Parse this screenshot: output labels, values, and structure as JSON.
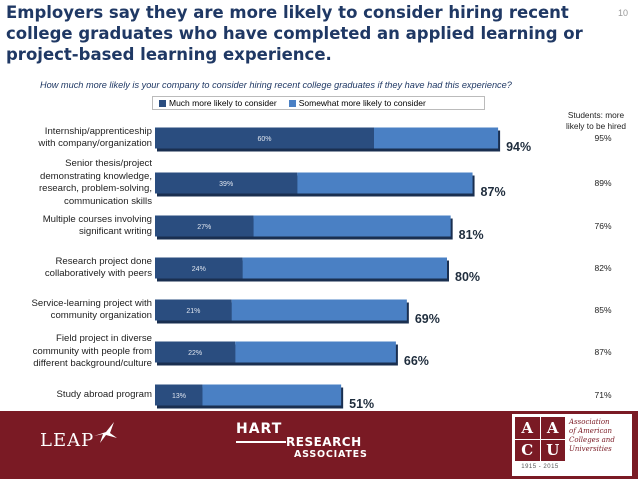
{
  "title": "Employers say they are more likely to consider hiring recent college graduates who have completed an applied learning or project-based learning experience.",
  "page_number": "10",
  "chart_data": {
    "type": "bar",
    "orientation": "horizontal",
    "stacked": true,
    "title": "How much more likely is your company to consider hiring recent college graduates if they have had this experience?",
    "categories": [
      "Internship/apprenticeship with company/organization",
      "Senior thesis/project demonstrating knowledge, research, problem-solving, communication skills",
      "Multiple courses involving significant writing",
      "Research project done collaboratively with peers",
      "Service-learning project with community organization",
      "Field project in diverse community with people from different background/culture",
      "Study abroad program"
    ],
    "series": [
      {
        "name": "Much more likely to consider",
        "values": [
          60,
          39,
          27,
          24,
          21,
          22,
          13
        ],
        "labels": [
          "60%",
          "39%",
          "27%",
          "24%",
          "21%",
          "22%",
          "13%"
        ],
        "color": "#2a4d7f"
      },
      {
        "name": "Somewhat more likely to consider",
        "values": [
          34,
          48,
          54,
          56,
          48,
          44,
          38
        ],
        "color": "#4a80c4"
      }
    ],
    "totals": [
      94,
      87,
      81,
      80,
      69,
      66,
      51
    ],
    "total_labels": [
      "94%",
      "87%",
      "81%",
      "80%",
      "69%",
      "66%",
      "51%"
    ],
    "students_header": [
      "Students: more",
      "likely to be hired"
    ],
    "students": [
      "95%",
      "89%",
      "76%",
      "82%",
      "85%",
      "87%",
      "71%"
    ],
    "xlim": [
      0,
      100
    ],
    "legend_position": "top"
  },
  "footer": {
    "leap": "LEAP",
    "hart_line1": "HART",
    "hart_line2": "RESEARCH",
    "hart_line3": "ASSOCIATES",
    "aacu_letters": [
      "A",
      "A",
      "C",
      "U"
    ],
    "aacu_name": [
      "Association",
      "of American",
      "Colleges and",
      "Universities"
    ],
    "aacu_years": "1915 - 2015",
    "background_color": "#7a1a24"
  }
}
